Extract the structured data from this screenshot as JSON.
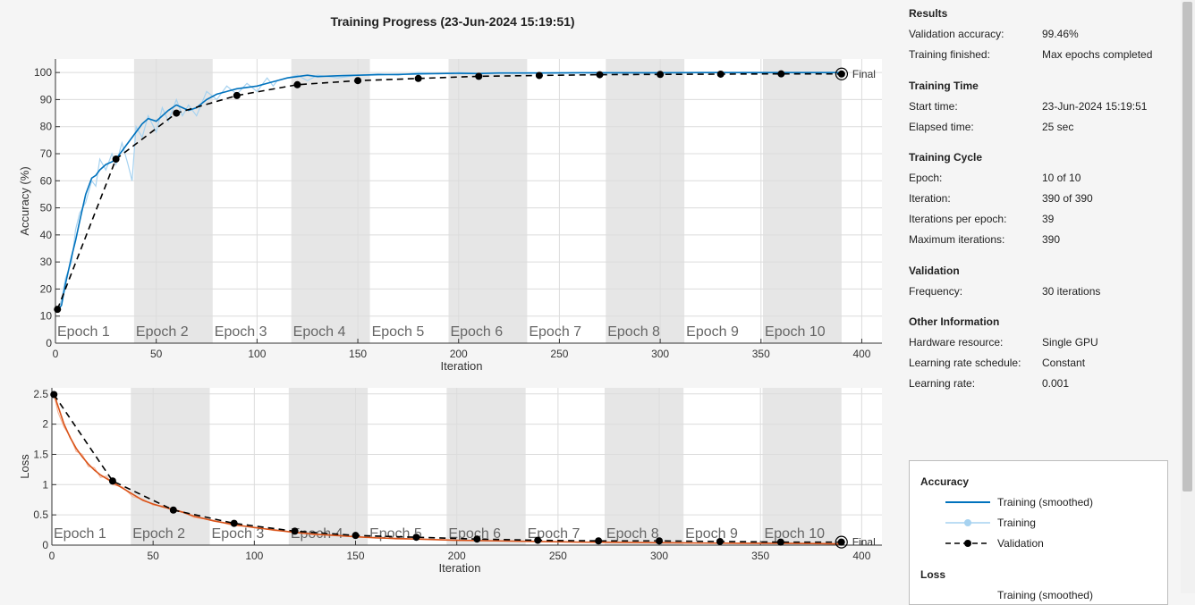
{
  "title": "Training Progress (23-Jun-2024 15:19:51)",
  "results": [
    {
      "heading": "Results",
      "rows": [
        {
          "key": "Validation accuracy:",
          "value": "99.46%"
        },
        {
          "key": "Training finished:",
          "value": "Max epochs completed"
        }
      ]
    },
    {
      "heading": "Training Time",
      "rows": [
        {
          "key": "Start time:",
          "value": "23-Jun-2024 15:19:51"
        },
        {
          "key": "Elapsed time:",
          "value": "25 sec"
        }
      ]
    },
    {
      "heading": "Training Cycle",
      "rows": [
        {
          "key": "Epoch:",
          "value": "10 of 10"
        },
        {
          "key": "Iteration:",
          "value": "390 of 390"
        },
        {
          "key": "Iterations per epoch:",
          "value": "39"
        },
        {
          "key": "Maximum iterations:",
          "value": "390"
        }
      ]
    },
    {
      "heading": "Validation",
      "rows": [
        {
          "key": "Frequency:",
          "value": "30 iterations"
        }
      ]
    },
    {
      "heading": "Other Information",
      "rows": [
        {
          "key": "Hardware resource:",
          "value": "Single GPU"
        },
        {
          "key": "Learning rate schedule:",
          "value": "Constant"
        },
        {
          "key": "Learning rate:",
          "value": "0.001"
        }
      ]
    }
  ],
  "legend": {
    "accuracy_heading": "Accuracy",
    "loss_heading": "Loss",
    "items": [
      "Training (smoothed)",
      "Training",
      "Validation"
    ],
    "partial_item": "Training (smoothed)"
  },
  "colors": {
    "accuracy_smoothed": "#0072bd",
    "accuracy_raw": "#a6d2f0",
    "loss_smoothed": "#d95319",
    "loss_raw": "#f6b79c",
    "validation": "#000000",
    "epoch_band": "#e6e6e6"
  },
  "chart_data": [
    {
      "type": "line",
      "name": "accuracy",
      "ylabel": "Accuracy (%)",
      "xlabel": "Iteration",
      "xlim": [
        0,
        410
      ],
      "ylim": [
        0,
        105
      ],
      "xticks": [
        0,
        50,
        100,
        150,
        200,
        250,
        300,
        350,
        400
      ],
      "yticks": [
        0,
        10,
        20,
        30,
        40,
        50,
        60,
        70,
        80,
        90,
        100
      ],
      "grid": true,
      "epochs": [
        "Epoch 1",
        "Epoch 2",
        "Epoch 3",
        "Epoch 4",
        "Epoch 5",
        "Epoch 6",
        "Epoch 7",
        "Epoch 8",
        "Epoch 9",
        "Epoch 10"
      ],
      "iterations_per_epoch": 39,
      "final_label": "Final",
      "smoothed": {
        "x": [
          1,
          3,
          5,
          8,
          10,
          12,
          15,
          18,
          20,
          22,
          25,
          28,
          30,
          33,
          36,
          40,
          43,
          46,
          50,
          53,
          56,
          60,
          63,
          66,
          70,
          75,
          80,
          85,
          90,
          95,
          100,
          105,
          110,
          115,
          120,
          125,
          130,
          140,
          150,
          160,
          170,
          180,
          190,
          200,
          210,
          220,
          240,
          260,
          280,
          300,
          320,
          340,
          360,
          380,
          390
        ],
        "y": [
          12,
          14,
          22,
          32,
          38,
          45,
          55,
          61,
          62,
          64,
          66,
          67,
          68,
          71,
          74,
          78,
          81,
          83,
          82,
          84,
          86,
          88,
          87,
          86,
          87,
          90,
          92,
          93,
          94,
          94.5,
          95,
          96,
          97,
          98,
          98.5,
          99,
          98.5,
          98.8,
          99,
          99.2,
          99.3,
          99.5,
          99.6,
          99.7,
          99.6,
          99.8,
          99.8,
          99.9,
          99.9,
          99.9,
          100,
          100,
          100,
          100,
          100
        ]
      },
      "raw": {
        "x": [
          1,
          3,
          5,
          8,
          10,
          12,
          15,
          18,
          20,
          22,
          25,
          28,
          30,
          33,
          36,
          38,
          40,
          43,
          46,
          50,
          53,
          56,
          60,
          63,
          66,
          70,
          75,
          80,
          85,
          90,
          95,
          100,
          105,
          108,
          110,
          115,
          120,
          125,
          130,
          140,
          150,
          160,
          170,
          180,
          190,
          200,
          210,
          220,
          240,
          260,
          280,
          300,
          320,
          340,
          360,
          380,
          390
        ],
        "y": [
          12,
          16,
          24,
          30,
          42,
          48,
          52,
          60,
          58,
          68,
          64,
          70,
          66,
          74,
          66,
          60,
          80,
          76,
          84,
          78,
          87,
          82,
          90,
          84,
          88,
          84,
          93,
          90,
          95,
          92,
          96,
          93,
          98,
          95,
          97,
          98,
          99,
          97,
          99,
          98,
          99,
          99.5,
          99,
          100,
          99.5,
          100,
          99.7,
          100,
          100,
          100,
          100,
          100,
          100,
          100,
          100,
          100,
          100
        ]
      },
      "validation": {
        "x": [
          1,
          30,
          60,
          90,
          120,
          150,
          180,
          210,
          240,
          270,
          300,
          330,
          360,
          390
        ],
        "y": [
          12.5,
          68,
          85,
          91.5,
          95.5,
          97,
          97.8,
          98.6,
          98.9,
          99.2,
          99.3,
          99.4,
          99.5,
          99.46
        ]
      }
    },
    {
      "type": "line",
      "name": "loss",
      "ylabel": "Loss",
      "xlabel": "Iteration",
      "xlim": [
        0,
        410
      ],
      "ylim": [
        0,
        2.6
      ],
      "xticks": [
        0,
        50,
        100,
        150,
        200,
        250,
        300,
        350,
        400
      ],
      "yticks": [
        0,
        0.5,
        1,
        1.5,
        2,
        2.5
      ],
      "ytick_labels": [
        "0",
        "0.5",
        "1",
        "1.5",
        "2",
        "2.5"
      ],
      "grid": true,
      "epochs": [
        "Epoch 1",
        "Epoch 2",
        "Epoch 3",
        "Epoch 4",
        "Epoch 5",
        "Epoch 6",
        "Epoch 7",
        "Epoch 8",
        "Epoch 9",
        "Epoch 10"
      ],
      "iterations_per_epoch": 39,
      "final_label": "Final",
      "smoothed": {
        "x": [
          1,
          3,
          6,
          9,
          12,
          15,
          18,
          21,
          24,
          27,
          30,
          35,
          40,
          45,
          50,
          55,
          60,
          65,
          70,
          80,
          90,
          100,
          110,
          120,
          130,
          140,
          150,
          160,
          170,
          180,
          200,
          220,
          240,
          260,
          280,
          300,
          320,
          340,
          360,
          380,
          390
        ],
        "y": [
          2.5,
          2.3,
          2.0,
          1.78,
          1.6,
          1.46,
          1.34,
          1.24,
          1.16,
          1.1,
          1.04,
          0.94,
          0.84,
          0.74,
          0.68,
          0.63,
          0.59,
          0.54,
          0.48,
          0.4,
          0.34,
          0.29,
          0.25,
          0.21,
          0.18,
          0.16,
          0.14,
          0.12,
          0.11,
          0.1,
          0.08,
          0.07,
          0.06,
          0.05,
          0.045,
          0.04,
          0.035,
          0.03,
          0.03,
          0.025,
          0.02
        ]
      },
      "raw": {
        "x": [
          1,
          3,
          6,
          9,
          12,
          15,
          18,
          21,
          24,
          27,
          30,
          35,
          40,
          45,
          50,
          55,
          60,
          65,
          70,
          80,
          90,
          100,
          110,
          120,
          130,
          140,
          150,
          160,
          170,
          180,
          200,
          220,
          240,
          260,
          280,
          300,
          320,
          340,
          360,
          380,
          390
        ],
        "y": [
          2.5,
          2.2,
          1.95,
          1.8,
          1.55,
          1.5,
          1.3,
          1.28,
          1.12,
          1.14,
          1.0,
          0.96,
          0.8,
          0.76,
          0.66,
          0.65,
          0.56,
          0.55,
          0.46,
          0.41,
          0.32,
          0.3,
          0.24,
          0.22,
          0.17,
          0.17,
          0.13,
          0.13,
          0.1,
          0.1,
          0.08,
          0.07,
          0.06,
          0.05,
          0.045,
          0.04,
          0.035,
          0.03,
          0.03,
          0.025,
          0.02
        ]
      },
      "validation": {
        "x": [
          1,
          30,
          60,
          90,
          120,
          150,
          180,
          210,
          240,
          270,
          300,
          330,
          360,
          390
        ],
        "y": [
          2.49,
          1.06,
          0.58,
          0.36,
          0.23,
          0.16,
          0.13,
          0.1,
          0.08,
          0.07,
          0.07,
          0.06,
          0.05,
          0.05
        ]
      }
    }
  ]
}
